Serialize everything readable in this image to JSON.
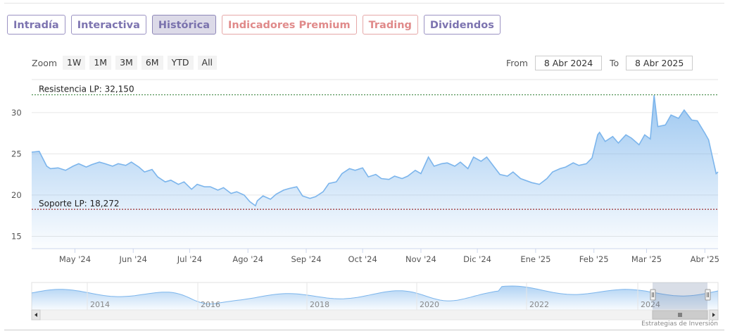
{
  "tabs": [
    {
      "label": "Intradía",
      "style": "normal"
    },
    {
      "label": "Interactiva",
      "style": "normal"
    },
    {
      "label": "Histórica",
      "style": "active"
    },
    {
      "label": "Indicadores Premium",
      "style": "premium"
    },
    {
      "label": "Trading",
      "style": "premium"
    },
    {
      "label": "Dividendos",
      "style": "normal"
    }
  ],
  "zoom": {
    "label": "Zoom",
    "buttons": [
      "1W",
      "1M",
      "3M",
      "6M",
      "YTD",
      "All"
    ]
  },
  "range": {
    "from_label": "From",
    "from_value": "8 Abr 2024",
    "to_label": "To",
    "to_value": "8 Abr 2025"
  },
  "credit": "Estrategias de Inversión",
  "colors": {
    "line": "#7cb5ec",
    "resistance": "#2e7d32",
    "support": "#8b0000",
    "tab_text": "#7d74b0",
    "premium_text": "#e08a8a"
  },
  "chart_data": {
    "type": "area",
    "title": "",
    "xlabel": "",
    "ylabel": "",
    "ylim": [
      13.5,
      34
    ],
    "y_ticks": [
      15,
      20,
      25,
      30
    ],
    "x_range": [
      "2024-04-08",
      "2025-04-08"
    ],
    "x_tick_labels": [
      {
        "date": "2024-05-01",
        "label": "May '24"
      },
      {
        "date": "2024-06-01",
        "label": "Jun '24"
      },
      {
        "date": "2024-07-01",
        "label": "Jul '24"
      },
      {
        "date": "2024-08-01",
        "label": "Ago '24"
      },
      {
        "date": "2024-09-01",
        "label": "Sep '24"
      },
      {
        "date": "2024-10-01",
        "label": "Oct '24"
      },
      {
        "date": "2024-11-01",
        "label": "Nov '24"
      },
      {
        "date": "2024-12-01",
        "label": "Dic '24"
      },
      {
        "date": "2025-01-01",
        "label": "Ene '25"
      },
      {
        "date": "2025-02-01",
        "label": "Feb '25"
      },
      {
        "date": "2025-03-01",
        "label": "Mar '25"
      },
      {
        "date": "2025-04-01",
        "label": "Abr '25"
      }
    ],
    "plot_lines": [
      {
        "label": "Resistencia LP: 32,150",
        "value": 32.15,
        "color": "#2e7d32"
      },
      {
        "label": "Soporte LP: 18,272",
        "value": 18.272,
        "color": "#8b0000"
      }
    ],
    "series": [
      {
        "x": [
          "2024-04-08",
          "2024-04-12",
          "2024-04-16",
          "2024-04-18",
          "2024-04-22",
          "2024-04-26",
          "2024-04-30",
          "2024-05-03",
          "2024-05-07",
          "2024-05-10",
          "2024-05-14",
          "2024-05-17",
          "2024-05-21",
          "2024-05-24",
          "2024-05-28",
          "2024-05-31",
          "2024-06-04",
          "2024-06-07",
          "2024-06-11",
          "2024-06-14",
          "2024-06-18",
          "2024-06-21",
          "2024-06-25",
          "2024-06-28",
          "2024-07-02",
          "2024-07-05",
          "2024-07-09",
          "2024-07-12",
          "2024-07-16",
          "2024-07-19",
          "2024-07-23",
          "2024-07-26",
          "2024-07-30",
          "2024-08-02",
          "2024-08-05",
          "2024-08-06",
          "2024-08-09",
          "2024-08-13",
          "2024-08-16",
          "2024-08-20",
          "2024-08-23",
          "2024-08-27",
          "2024-08-30",
          "2024-09-03",
          "2024-09-06",
          "2024-09-10",
          "2024-09-13",
          "2024-09-17",
          "2024-09-20",
          "2024-09-24",
          "2024-09-27",
          "2024-10-01",
          "2024-10-04",
          "2024-10-08",
          "2024-10-11",
          "2024-10-15",
          "2024-10-18",
          "2024-10-22",
          "2024-10-25",
          "2024-10-29",
          "2024-11-01",
          "2024-11-05",
          "2024-11-08",
          "2024-11-12",
          "2024-11-15",
          "2024-11-19",
          "2024-11-22",
          "2024-11-26",
          "2024-11-29",
          "2024-12-03",
          "2024-12-06",
          "2024-12-10",
          "2024-12-13",
          "2024-12-17",
          "2024-12-20",
          "2024-12-24",
          "2024-12-30",
          "2025-01-03",
          "2025-01-07",
          "2025-01-10",
          "2025-01-14",
          "2025-01-17",
          "2025-01-21",
          "2025-01-24",
          "2025-01-28",
          "2025-01-31",
          "2025-02-03",
          "2025-02-04",
          "2025-02-07",
          "2025-02-11",
          "2025-02-14",
          "2025-02-18",
          "2025-02-21",
          "2025-02-25",
          "2025-02-28",
          "2025-03-03",
          "2025-03-05",
          "2025-03-07",
          "2025-03-11",
          "2025-03-14",
          "2025-03-18",
          "2025-03-21",
          "2025-03-25",
          "2025-03-28",
          "2025-04-01",
          "2025-04-03",
          "2025-04-07",
          "2025-04-08"
        ],
        "y": [
          25.2,
          25.3,
          23.5,
          23.2,
          23.3,
          23.0,
          23.5,
          23.8,
          23.4,
          23.7,
          24.0,
          23.8,
          23.5,
          23.8,
          23.6,
          24.0,
          23.4,
          22.8,
          23.1,
          22.2,
          21.6,
          21.8,
          21.3,
          21.6,
          20.7,
          21.3,
          21.0,
          21.0,
          20.6,
          20.9,
          20.2,
          20.4,
          20.0,
          19.2,
          18.7,
          19.3,
          19.9,
          19.5,
          20.1,
          20.6,
          20.8,
          21.0,
          19.9,
          19.6,
          19.8,
          20.4,
          21.4,
          21.6,
          22.6,
          23.2,
          23.0,
          23.3,
          22.2,
          22.5,
          22.0,
          21.9,
          22.3,
          22.0,
          22.3,
          23.0,
          22.6,
          24.6,
          23.5,
          23.8,
          23.9,
          23.5,
          24.0,
          23.2,
          24.6,
          24.1,
          24.6,
          23.4,
          22.5,
          22.3,
          22.8,
          22.0,
          21.5,
          21.3,
          22.0,
          22.8,
          23.2,
          23.4,
          23.9,
          23.6,
          23.8,
          24.5,
          27.3,
          27.6,
          26.5,
          27.1,
          26.3,
          27.3,
          26.9,
          26.1,
          27.3,
          26.8,
          32.1,
          28.3,
          28.5,
          29.7,
          29.3,
          30.3,
          29.1,
          29.0,
          27.5,
          26.7,
          22.6,
          22.8
        ]
      }
    ],
    "navigator": {
      "x_tick_labels": [
        "2014",
        "2016",
        "2018",
        "2020",
        "2022",
        "2024"
      ]
    }
  }
}
